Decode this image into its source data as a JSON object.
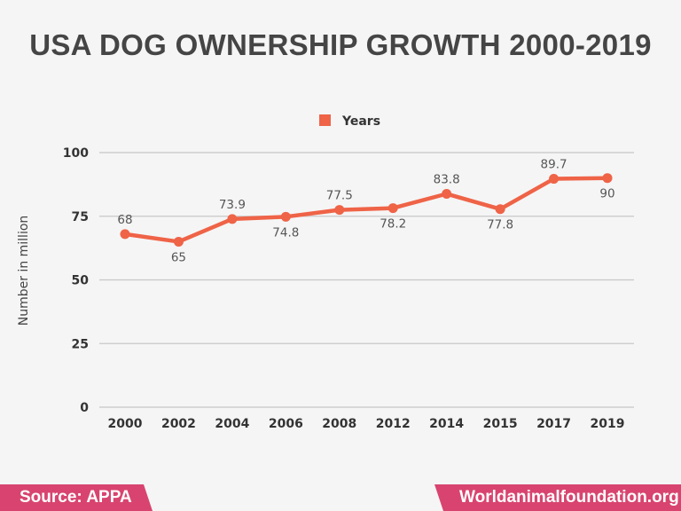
{
  "chart_data": {
    "type": "line",
    "title": "USA DOG OWNERSHIP GROWTH 2000-2019",
    "xlabel": "",
    "ylabel": "Number in million",
    "categories": [
      "2000",
      "2002",
      "2004",
      "2006",
      "2008",
      "2012",
      "2014",
      "2015",
      "2017",
      "2019"
    ],
    "series": [
      {
        "name": "Years",
        "values": [
          68,
          65,
          73.9,
          74.8,
          77.5,
          78.2,
          83.8,
          77.8,
          89.7,
          90
        ],
        "color": "#ef6347"
      }
    ],
    "ylim": [
      0,
      100
    ],
    "yticks": [
      0,
      25,
      50,
      75,
      100
    ],
    "grid": true,
    "legend": "top-center",
    "data_labels": true
  },
  "footer": {
    "source": "Source: APPA",
    "site": "Worldanimalfoundation.org",
    "color": "#d8446f"
  }
}
